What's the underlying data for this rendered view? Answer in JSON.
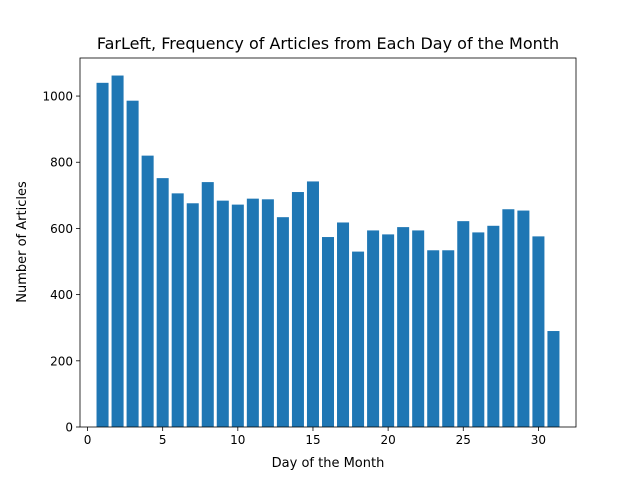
{
  "chart_data": {
    "type": "bar",
    "title": "FarLeft, Frequency of Articles from Each Day of the Month",
    "xlabel": "Day of the Month",
    "ylabel": "Number of Articles",
    "x": [
      1,
      2,
      3,
      4,
      5,
      6,
      7,
      8,
      9,
      10,
      11,
      12,
      13,
      14,
      15,
      16,
      17,
      18,
      19,
      20,
      21,
      22,
      23,
      24,
      25,
      26,
      27,
      28,
      29,
      30,
      31
    ],
    "values": [
      1040,
      1062,
      986,
      820,
      752,
      706,
      676,
      740,
      684,
      672,
      690,
      688,
      634,
      710,
      742,
      574,
      618,
      530,
      594,
      582,
      604,
      594,
      534,
      534,
      622,
      588,
      608,
      658,
      654,
      576,
      290
    ],
    "xlim": [
      -0.5,
      32.5
    ],
    "ylim": [
      0,
      1115
    ],
    "xticks": [
      0,
      5,
      10,
      15,
      20,
      25,
      30
    ],
    "yticks": [
      0,
      200,
      400,
      600,
      800,
      1000
    ],
    "bar_color": "#1f77b4",
    "grid": false,
    "legend": "none"
  }
}
